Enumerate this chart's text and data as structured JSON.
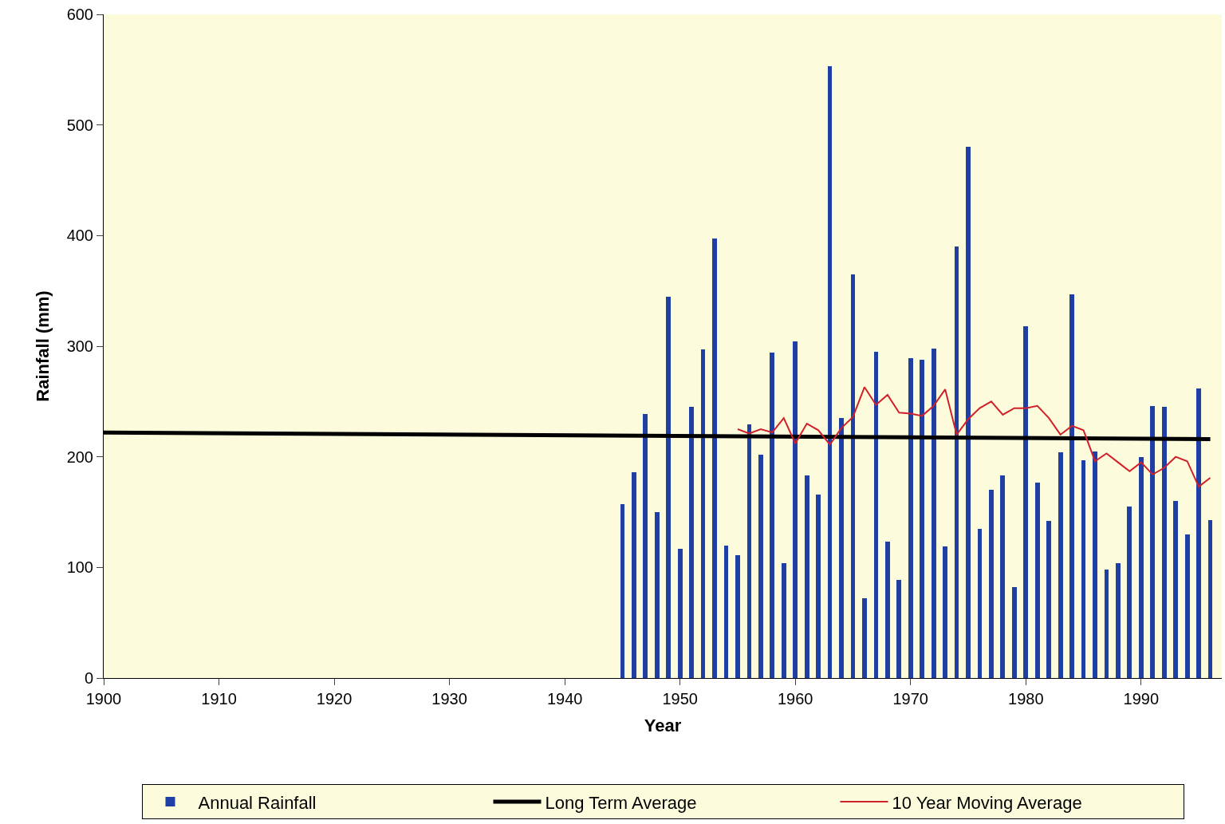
{
  "chart_data": {
    "type": "bar",
    "xlabel": "Year",
    "ylabel": "Rainfall (mm)",
    "x": [
      1945,
      1946,
      1947,
      1948,
      1949,
      1950,
      1951,
      1952,
      1953,
      1954,
      1955,
      1956,
      1957,
      1958,
      1959,
      1960,
      1961,
      1962,
      1963,
      1964,
      1965,
      1966,
      1967,
      1968,
      1969,
      1970,
      1971,
      1972,
      1973,
      1974,
      1975,
      1976,
      1977,
      1978,
      1979,
      1980,
      1981,
      1982,
      1983,
      1984,
      1985,
      1986,
      1987,
      1988,
      1989,
      1990,
      1991,
      1992,
      1993,
      1994,
      1995,
      1996
    ],
    "series": [
      {
        "name": "Annual Rainfall",
        "color": "#1e3fa6",
        "values": [
          157,
          186,
          239,
          150,
          345,
          117,
          245,
          297,
          397,
          120,
          111,
          229,
          202,
          294,
          104,
          304,
          183,
          166,
          553,
          235,
          365,
          72,
          295,
          123,
          89,
          289,
          288,
          298,
          119,
          390,
          480,
          135,
          170,
          183,
          82,
          318,
          177,
          142,
          204,
          347,
          197,
          205,
          98,
          104,
          155,
          200,
          246,
          245,
          160,
          130,
          262,
          143
        ]
      },
      {
        "name": "Long Term Average",
        "type": "line",
        "color": "#000000",
        "x": [
          1900,
          1996
        ],
        "values": [
          222,
          216
        ]
      },
      {
        "name": "10 Year Moving Average",
        "type": "line",
        "color": "#d0202a",
        "x": [
          1955,
          1956,
          1957,
          1958,
          1959,
          1960,
          1961,
          1962,
          1963,
          1964,
          1965,
          1966,
          1967,
          1968,
          1969,
          1970,
          1971,
          1972,
          1973,
          1974,
          1975,
          1976,
          1977,
          1978,
          1979,
          1980,
          1981,
          1982,
          1983,
          1984,
          1985,
          1986,
          1987,
          1988,
          1989,
          1990,
          1991,
          1992,
          1993,
          1994,
          1995,
          1996
        ],
        "values": [
          225,
          221,
          225,
          222,
          235,
          212,
          230,
          224,
          211,
          226,
          236,
          263,
          247,
          256,
          240,
          239,
          237,
          246,
          261,
          220,
          234,
          244,
          250,
          238,
          244,
          244,
          246,
          235,
          220,
          228,
          224,
          196,
          203,
          195,
          187,
          195,
          184,
          190,
          200,
          196,
          173,
          181
        ]
      }
    ],
    "xlim": [
      1900,
      1997
    ],
    "xticks": [
      1900,
      1910,
      1920,
      1930,
      1940,
      1950,
      1960,
      1970,
      1980,
      1990
    ],
    "ylim": [
      0,
      600
    ],
    "yticks": [
      0,
      100,
      200,
      300,
      400,
      500,
      600
    ],
    "grid": false,
    "legend": "bottom"
  }
}
